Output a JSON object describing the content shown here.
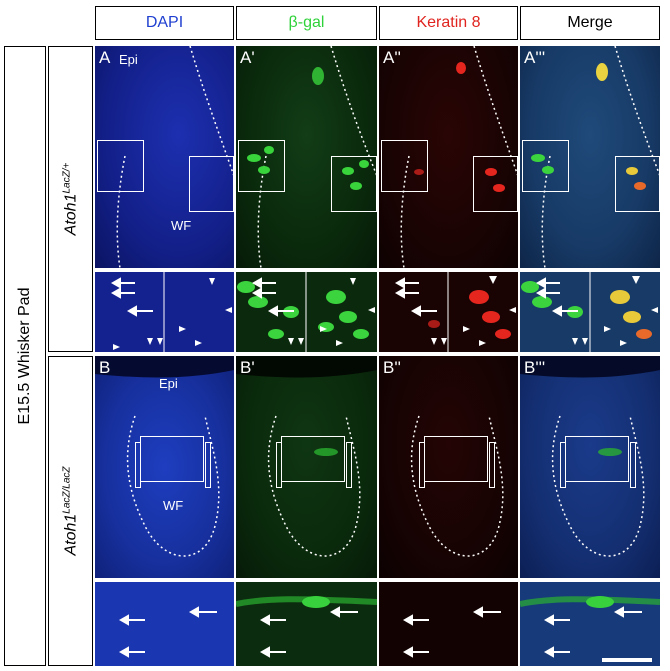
{
  "headers": {
    "dapi": "DAPI",
    "bgal": "β-gal",
    "keratin": "Keratin 8",
    "merge": "Merge"
  },
  "colors": {
    "dapi": "#1f3fd0",
    "bgal": "#2fd23a",
    "keratin": "#e0241f",
    "merge": "#000000"
  },
  "row_labels": {
    "tissue": "E15.5 Whisker Pad",
    "genotype_a_base": "Atoh1",
    "genotype_a_sup": "LacZ/+",
    "genotype_b_base": "Atoh1",
    "genotype_b_sup": "LacZ/LacZ"
  },
  "panels_a": [
    "A",
    "A'",
    "A''",
    "A'''"
  ],
  "panels_b": [
    "B",
    "B'",
    "B''",
    "B'''"
  ],
  "region_labels": {
    "epi": "Epi",
    "wf": "WF"
  }
}
